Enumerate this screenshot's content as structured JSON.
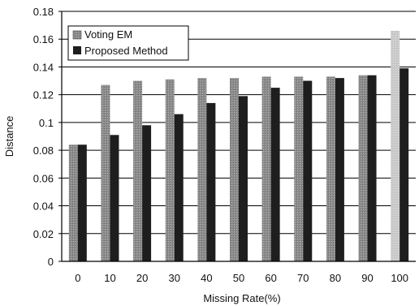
{
  "chart_data": {
    "type": "bar",
    "title": "",
    "xlabel": "Missing Rate(%)",
    "ylabel": "Distance",
    "categories": [
      "0",
      "10",
      "20",
      "30",
      "40",
      "50",
      "60",
      "70",
      "80",
      "90",
      "100"
    ],
    "series": [
      {
        "name": "Voting EM",
        "color": "#8c8c8c",
        "values": [
          0.084,
          0.127,
          0.13,
          0.131,
          0.132,
          0.132,
          0.133,
          0.133,
          0.133,
          0.134,
          0.166
        ]
      },
      {
        "name": "Proposed Method",
        "color": "#1e1e1e",
        "values": [
          0.084,
          0.091,
          0.098,
          0.106,
          0.114,
          0.119,
          0.125,
          0.13,
          0.132,
          0.134,
          0.139
        ]
      }
    ],
    "highlight": {
      "index": 10,
      "series": 0,
      "color": "#c8c8c8"
    },
    "ylim": [
      0,
      0.18
    ],
    "yticks": [
      "0",
      "0.02",
      "0.04",
      "0.06",
      "0.08",
      "0.1",
      "0.12",
      "0.14",
      "0.16",
      "0.18"
    ],
    "grid": true,
    "legend": "top-left"
  }
}
